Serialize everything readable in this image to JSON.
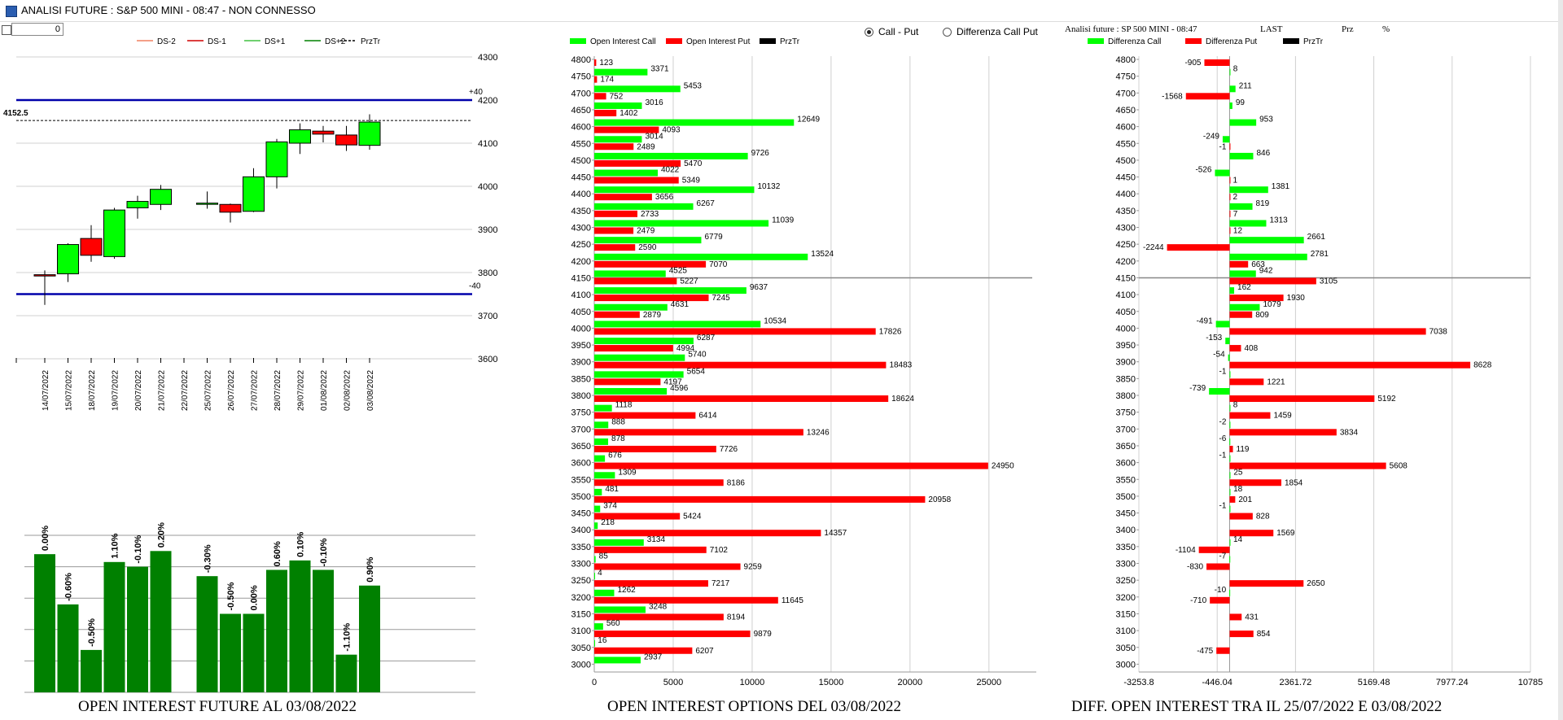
{
  "window": {
    "title": "ANALISI FUTURE : S&P 500 MINI - 08:47 - NON CONNESSO"
  },
  "toolbar": {
    "counter_value": "0"
  },
  "options": [
    {
      "label": "Call - Put",
      "selected": true
    },
    {
      "label": "Differenza Call Put",
      "selected": false
    }
  ],
  "header_info": {
    "label": "Analisi future : SP 500 MINI - 08:47",
    "last_label": "LAST",
    "prz_label": "Prz",
    "pct_label": "%"
  },
  "colors": {
    "green": "#00ff00",
    "red": "#ff0000",
    "darkgreen": "#008000",
    "blue": "#0000aa"
  },
  "titles": {
    "future": "OPEN INTEREST FUTURE AL 03/08/2022",
    "options": "OPEN INTEREST OPTIONS DEL 03/08/2022",
    "diff": "DIFF. OPEN INTEREST TRA IL 25/07/2022 E 03/08/2022"
  },
  "chart_data": [
    {
      "type": "candlestick",
      "legend": [
        "DS-2",
        "DS-1",
        "DS+1",
        "DS+2",
        "PrzTr"
      ],
      "legend_colors": [
        "#f08060",
        "#d00000",
        "#40c040",
        "#008000",
        "#000000"
      ],
      "yticks": [
        4300,
        4200,
        4100,
        4000,
        3900,
        3800,
        3700,
        3600
      ],
      "ylim": [
        3600,
        4300
      ],
      "dates": [
        "14/07/2022",
        "15/07/2022",
        "18/07/2022",
        "19/07/2022",
        "20/07/2022",
        "21/07/2022",
        "22/07/2022",
        "25/07/2022",
        "26/07/2022",
        "27/07/2022",
        "28/07/2022",
        "29/07/2022",
        "01/08/2022",
        "02/08/2022",
        "03/08/2022"
      ],
      "candles": [
        {
          "o": 3795,
          "h": 3805,
          "l": 3725,
          "c": 3792
        },
        {
          "o": 3797,
          "h": 3868,
          "l": 3778,
          "c": 3865
        },
        {
          "o": 3879,
          "h": 3910,
          "l": 3825,
          "c": 3840
        },
        {
          "o": 3837,
          "h": 3950,
          "l": 3832,
          "c": 3945
        },
        {
          "o": 3950,
          "h": 3978,
          "l": 3925,
          "c": 3965
        },
        {
          "o": 3958,
          "h": 4003,
          "l": 3945,
          "c": 3993
        },
        null,
        {
          "o": 3961,
          "h": 3988,
          "l": 3948,
          "c": 3961
        },
        {
          "o": 3958,
          "h": 3960,
          "l": 3916,
          "c": 3940
        },
        {
          "o": 3942,
          "h": 4042,
          "l": 3940,
          "c": 4022
        },
        {
          "o": 4022,
          "h": 4110,
          "l": 3995,
          "c": 4103
        },
        {
          "o": 4100,
          "h": 4146,
          "l": 4075,
          "c": 4131
        },
        {
          "o": 4128,
          "h": 4140,
          "l": 4102,
          "c": 4121
        },
        {
          "o": 4119,
          "h": 4140,
          "l": 4082,
          "c": 4096
        },
        {
          "o": 4095,
          "h": 4167,
          "l": 4085,
          "c": 4149
        }
      ],
      "lines": {
        "upper": 4200,
        "lower": 3750,
        "przTr": 4152.5,
        "upper_label": "+40",
        "lower_label": "-40",
        "przTr_label": "4152.5"
      }
    },
    {
      "type": "bar",
      "labels": [
        "0.00%",
        "-0.60%",
        "-0.50%",
        "1.10%",
        "-0.10%",
        "0.20%",
        "",
        "-0.30%",
        "-0.50%",
        "0.00%",
        "0.60%",
        "0.10%",
        "-0.10%",
        "-1.10%",
        "0.90%"
      ],
      "values": [
        0.88,
        0.56,
        0.27,
        0.83,
        0.8,
        0.9,
        0,
        0.74,
        0.5,
        0.5,
        0.78,
        0.84,
        0.78,
        0.24,
        0.68
      ]
    },
    {
      "type": "bar",
      "orientation": "horizontal",
      "legend": [
        "Open Interest Call",
        "Open Interest Put",
        "PrzTr"
      ],
      "strikes": [
        4800,
        4750,
        4700,
        4650,
        4600,
        4550,
        4500,
        4450,
        4400,
        4350,
        4300,
        4250,
        4200,
        4150,
        4100,
        4050,
        4000,
        3950,
        3900,
        3850,
        3800,
        3750,
        3700,
        3650,
        3600,
        3550,
        3500,
        3450,
        3400,
        3350,
        3300,
        3250,
        3200,
        3150,
        3100,
        3050,
        3000
      ],
      "call": [
        0,
        3371,
        5453,
        3016,
        12649,
        3014,
        9726,
        4022,
        10132,
        6267,
        11039,
        6779,
        13524,
        4525,
        9637,
        4631,
        10534,
        6287,
        5740,
        5654,
        4596,
        1118,
        888,
        878,
        676,
        1309,
        481,
        374,
        218,
        3134,
        85,
        4,
        1262,
        3248,
        560,
        16,
        2937
      ],
      "put": [
        123,
        174,
        752,
        1402,
        4093,
        2489,
        5470,
        5349,
        3656,
        2733,
        2479,
        2590,
        7070,
        5227,
        7245,
        2879,
        17826,
        4994,
        18483,
        4197,
        18624,
        6414,
        13246,
        7726,
        24950,
        8186,
        20958,
        5424,
        14357,
        7102,
        9259,
        7217,
        11645,
        8194,
        9879,
        6207,
        0
      ],
      "call_labels": [
        "",
        "3371",
        "5453",
        "3016",
        "12649",
        "3014",
        "9726",
        "4022",
        "10132",
        "6267",
        "11039",
        "6779",
        "13524",
        "4525",
        "9637",
        "4631",
        "10534",
        "6287",
        "5740",
        "5654",
        "4596",
        "1118",
        "888",
        "878",
        "676",
        "1309",
        "481",
        "374",
        "218",
        "3134",
        "85",
        "4",
        "1262",
        "3248",
        "560",
        "16",
        "2937"
      ],
      "put_labels": [
        "123",
        "174",
        "752",
        "1402",
        "4093",
        "2489",
        "5470",
        "5349",
        "3656",
        "2733",
        "2479",
        "2590",
        "7070",
        "5227",
        "7245",
        "2879",
        "17826",
        "4994",
        "18483",
        "4197",
        "18624",
        "6414",
        "13246",
        "7726",
        "24950",
        "8186",
        "20958",
        "5424",
        "14357",
        "7102",
        "9259",
        "7217",
        "11645",
        "8194",
        "9879",
        "6207",
        ""
      ],
      "xticks": [
        0,
        5000,
        10000,
        15000,
        20000,
        25000
      ],
      "xlim": [
        0,
        28000
      ],
      "przTr_strike": 4150
    },
    {
      "type": "bar",
      "orientation": "horizontal",
      "legend": [
        "Differenza Call",
        "Differenza Put",
        "PrzTr"
      ],
      "strikes": [
        4800,
        4750,
        4700,
        4650,
        4600,
        4550,
        4500,
        4450,
        4400,
        4350,
        4300,
        4250,
        4200,
        4150,
        4100,
        4050,
        4000,
        3950,
        3900,
        3850,
        3800,
        3750,
        3700,
        3650,
        3600,
        3550,
        3500,
        3450,
        3400,
        3350,
        3300,
        3250,
        3200,
        3150,
        3100,
        3050,
        3000
      ],
      "call": [
        0,
        8,
        211,
        99,
        953,
        -249,
        846,
        -526,
        1381,
        819,
        1313,
        2661,
        2781,
        942,
        162,
        1079,
        -491,
        -153,
        -54,
        -1,
        -739,
        8,
        -2,
        -6,
        -1,
        25,
        18,
        -1,
        0,
        14,
        -7,
        0,
        -10,
        0,
        0,
        0,
        0
      ],
      "put": [
        -905,
        0,
        -1568,
        0,
        0,
        -1,
        0,
        1,
        2,
        7,
        12,
        -2244,
        663,
        3105,
        1930,
        809,
        7038,
        408,
        8628,
        1221,
        5192,
        1459,
        3834,
        119,
        5608,
        1854,
        201,
        828,
        1569,
        -1104,
        -830,
        2650,
        -710,
        431,
        854,
        -475,
        0
      ],
      "call_labels": [
        "",
        "8",
        "211",
        "99",
        "953",
        "-249",
        "846",
        "-526",
        "1381",
        "819",
        "1313",
        "2661",
        "2781",
        "942",
        "162",
        "1079",
        "-491",
        "-153",
        "-54",
        "-1",
        "-739",
        "8",
        "-2",
        "-6",
        "-1",
        "25",
        "18",
        "-1",
        "",
        "14",
        "-7",
        "",
        "-10",
        "",
        "",
        "",
        ""
      ],
      "put_labels": [
        "-905",
        "",
        "-1568",
        "",
        "",
        "-1",
        "",
        "1",
        "2",
        "7",
        "12",
        "-2244",
        "663",
        "3105",
        "1930",
        "809",
        "7038",
        "408",
        "8628",
        "1221",
        "5192",
        "1459",
        "3834",
        "119",
        "5608",
        "1854",
        "201",
        "828",
        "1569",
        "-1104",
        "-830",
        "2650",
        "-710",
        "431",
        "854",
        "-475",
        ""
      ],
      "xticks": [
        "-3253.8",
        "-446.04",
        "2361.72",
        "5169.48",
        "7977.24",
        "10785"
      ],
      "xlim": [
        -3253.8,
        10785
      ],
      "przTr_strike": 4150
    }
  ]
}
